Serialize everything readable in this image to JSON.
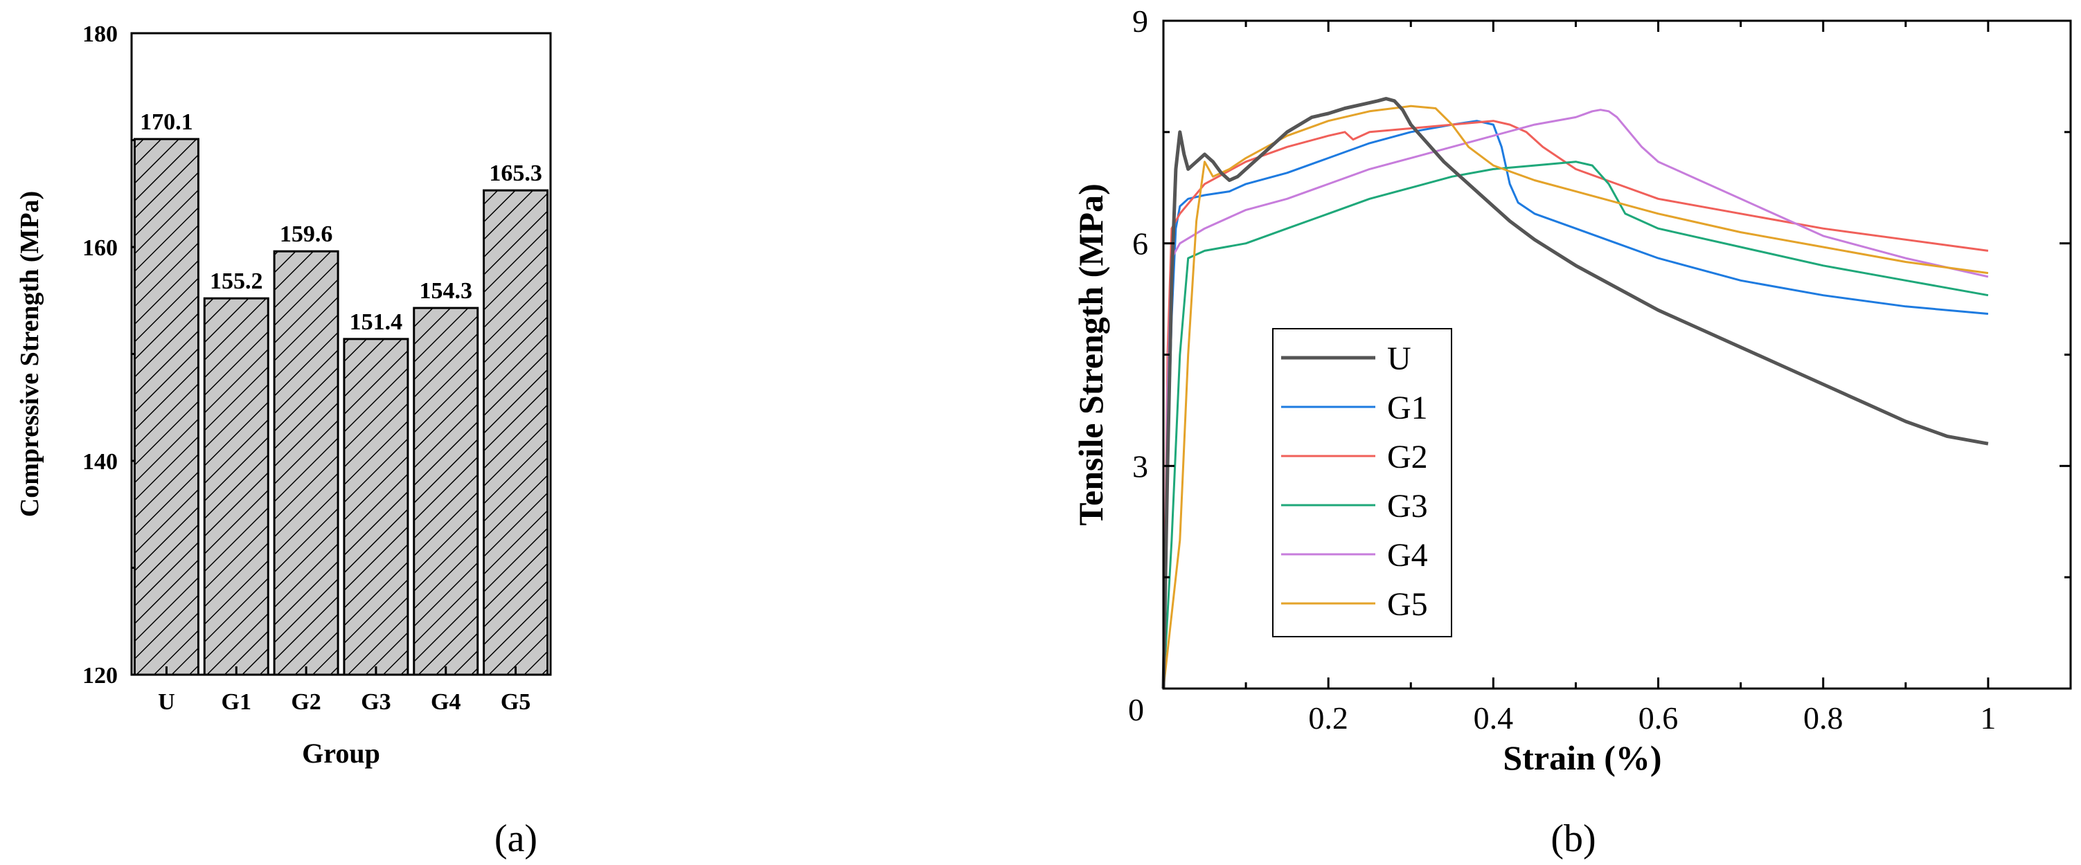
{
  "chart_data": [
    {
      "type": "bar",
      "panel_caption": "(a)",
      "title": "",
      "xlabel": "Group",
      "ylabel": "Compressive Strength (MPa)",
      "categories": [
        "U",
        "G1",
        "G2",
        "G3",
        "G4",
        "G5"
      ],
      "values": [
        170.1,
        155.2,
        159.6,
        151.4,
        154.3,
        165.3
      ],
      "value_labels": [
        "170.1",
        "155.2",
        "159.6",
        "151.4",
        "154.3",
        "165.3"
      ],
      "ylim": [
        120,
        180
      ],
      "yticks": [
        120,
        140,
        160,
        180
      ],
      "ytick_labels": [
        "120",
        "140",
        "160",
        "180"
      ],
      "bar_fill": "#c8c8c8",
      "hatch": "diagonal"
    },
    {
      "type": "line",
      "panel_caption": "(b)",
      "title": "",
      "xlabel": "Strain (%)",
      "ylabel": "Tensile Strength (MPa)",
      "xlim": [
        0,
        1.1
      ],
      "ylim": [
        0,
        9
      ],
      "xticks": [
        0,
        0.2,
        0.4,
        0.6,
        0.8,
        1
      ],
      "xtick_labels": [
        "0",
        "0.2",
        "0.4",
        "0.6",
        "0.8",
        "1"
      ],
      "yticks": [
        3,
        6,
        9
      ],
      "ytick_labels": [
        "3",
        "6",
        "9"
      ],
      "legend_position": "bottom-left",
      "series": [
        {
          "name": "U",
          "color": "#555555",
          "thick": true,
          "x": [
            0,
            0.005,
            0.01,
            0.015,
            0.02,
            0.025,
            0.03,
            0.04,
            0.05,
            0.06,
            0.07,
            0.08,
            0.09,
            0.1,
            0.12,
            0.15,
            0.18,
            0.2,
            0.22,
            0.24,
            0.26,
            0.27,
            0.28,
            0.29,
            0.3,
            0.32,
            0.34,
            0.36,
            0.38,
            0.4,
            0.42,
            0.45,
            0.5,
            0.55,
            0.6,
            0.65,
            0.7,
            0.75,
            0.8,
            0.85,
            0.9,
            0.95,
            1.0
          ],
          "y": [
            0,
            3.0,
            5.5,
            7.0,
            7.5,
            7.2,
            7.0,
            7.1,
            7.2,
            7.1,
            6.95,
            6.85,
            6.9,
            7.0,
            7.2,
            7.5,
            7.7,
            7.75,
            7.82,
            7.87,
            7.92,
            7.95,
            7.92,
            7.8,
            7.6,
            7.35,
            7.1,
            6.9,
            6.7,
            6.5,
            6.3,
            6.05,
            5.7,
            5.4,
            5.1,
            4.85,
            4.6,
            4.35,
            4.1,
            3.85,
            3.6,
            3.4,
            3.3
          ]
        },
        {
          "name": "G1",
          "color": "#1e7be0",
          "thick": false,
          "x": [
            0,
            0.005,
            0.01,
            0.015,
            0.02,
            0.03,
            0.05,
            0.08,
            0.1,
            0.15,
            0.2,
            0.25,
            0.3,
            0.35,
            0.38,
            0.4,
            0.41,
            0.42,
            0.43,
            0.45,
            0.5,
            0.55,
            0.6,
            0.7,
            0.8,
            0.9,
            1.0
          ],
          "y": [
            0,
            3.0,
            5.0,
            6.2,
            6.5,
            6.6,
            6.65,
            6.7,
            6.8,
            6.95,
            7.15,
            7.35,
            7.5,
            7.6,
            7.65,
            7.6,
            7.3,
            6.8,
            6.55,
            6.4,
            6.2,
            6.0,
            5.8,
            5.5,
            5.3,
            5.15,
            5.05
          ]
        },
        {
          "name": "G2",
          "color": "#f0605a",
          "thick": false,
          "x": [
            0,
            0.005,
            0.01,
            0.02,
            0.05,
            0.1,
            0.15,
            0.2,
            0.22,
            0.23,
            0.25,
            0.3,
            0.35,
            0.4,
            0.42,
            0.44,
            0.46,
            0.5,
            0.55,
            0.6,
            0.7,
            0.8,
            0.9,
            1.0
          ],
          "y": [
            0,
            4.5,
            6.2,
            6.4,
            6.8,
            7.1,
            7.3,
            7.45,
            7.5,
            7.4,
            7.5,
            7.55,
            7.6,
            7.65,
            7.6,
            7.5,
            7.3,
            7.0,
            6.8,
            6.6,
            6.4,
            6.2,
            6.05,
            5.9
          ]
        },
        {
          "name": "G3",
          "color": "#1fa87a",
          "thick": false,
          "x": [
            0,
            0.01,
            0.02,
            0.03,
            0.05,
            0.1,
            0.15,
            0.2,
            0.25,
            0.3,
            0.35,
            0.4,
            0.45,
            0.5,
            0.52,
            0.54,
            0.56,
            0.6,
            0.7,
            0.8,
            0.9,
            1.0
          ],
          "y": [
            0,
            2.0,
            4.5,
            5.8,
            5.9,
            6.0,
            6.2,
            6.4,
            6.6,
            6.75,
            6.9,
            7.0,
            7.05,
            7.1,
            7.05,
            6.8,
            6.4,
            6.2,
            5.95,
            5.7,
            5.5,
            5.3
          ]
        },
        {
          "name": "G4",
          "color": "#c77ddc",
          "thick": false,
          "x": [
            0,
            0.005,
            0.01,
            0.02,
            0.05,
            0.1,
            0.15,
            0.2,
            0.25,
            0.3,
            0.35,
            0.4,
            0.45,
            0.5,
            0.52,
            0.53,
            0.54,
            0.55,
            0.58,
            0.6,
            0.7,
            0.8,
            0.9,
            1.0
          ],
          "y": [
            0,
            4.0,
            5.8,
            6.0,
            6.2,
            6.45,
            6.6,
            6.8,
            7.0,
            7.15,
            7.3,
            7.45,
            7.6,
            7.7,
            7.78,
            7.8,
            7.78,
            7.7,
            7.3,
            7.1,
            6.6,
            6.1,
            5.8,
            5.55
          ]
        },
        {
          "name": "G5",
          "color": "#e4a32a",
          "thick": false,
          "x": [
            0,
            0.02,
            0.03,
            0.04,
            0.05,
            0.06,
            0.08,
            0.1,
            0.15,
            0.2,
            0.25,
            0.3,
            0.33,
            0.35,
            0.37,
            0.4,
            0.45,
            0.5,
            0.55,
            0.6,
            0.7,
            0.8,
            0.9,
            1.0
          ],
          "y": [
            0,
            2.0,
            4.5,
            6.3,
            7.1,
            6.9,
            7.0,
            7.15,
            7.45,
            7.65,
            7.78,
            7.85,
            7.82,
            7.6,
            7.3,
            7.05,
            6.85,
            6.7,
            6.55,
            6.4,
            6.15,
            5.95,
            5.75,
            5.6
          ]
        }
      ]
    }
  ]
}
